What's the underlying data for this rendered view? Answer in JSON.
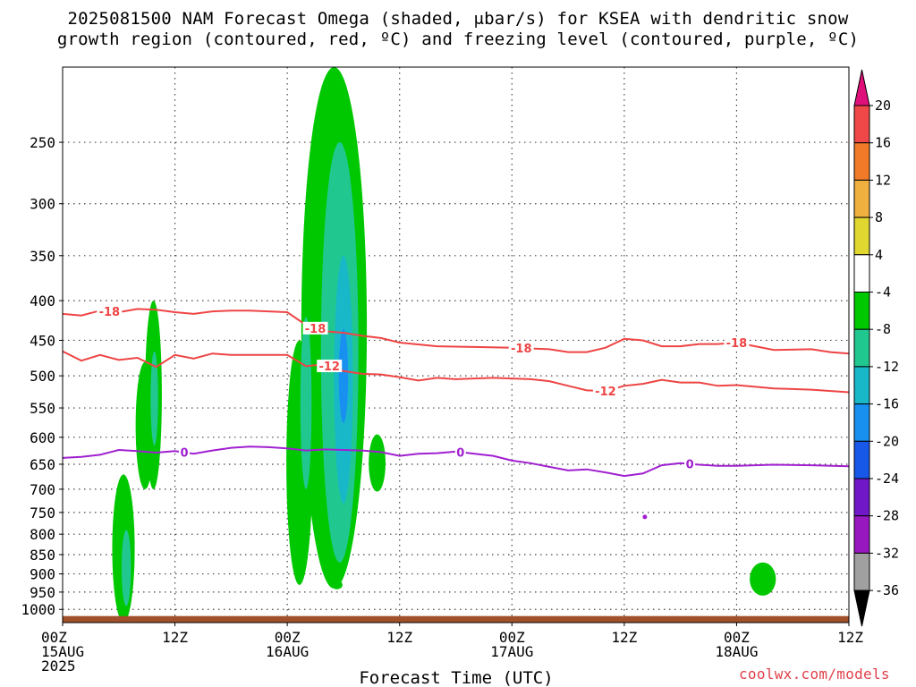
{
  "title": {
    "line1": "2025081500 NAM Forecast Omega (shaded, μbar/s) for KSEA with dendritic snow",
    "line2": "growth region (contoured, red, ºC) and freezing level (contoured, purple, ºC)"
  },
  "credit": "coolwx.com/models",
  "chart_data": {
    "type": "heatmap",
    "xlabel": "Forecast Time (UTC)",
    "ylabel": "",
    "x_range_hours": [
      0,
      84
    ],
    "y_axis": {
      "scale": "log-pressure",
      "range_hPa": [
        1040,
        200
      ],
      "ticks": [
        250,
        300,
        350,
        400,
        450,
        500,
        550,
        600,
        650,
        700,
        750,
        800,
        850,
        900,
        950,
        1000
      ]
    },
    "x_ticks": [
      {
        "hour": 0,
        "l1": "00Z",
        "l2": "15AUG",
        "l3": "2025"
      },
      {
        "hour": 12,
        "l1": "12Z",
        "l2": "",
        "l3": ""
      },
      {
        "hour": 24,
        "l1": "00Z",
        "l2": "16AUG",
        "l3": ""
      },
      {
        "hour": 36,
        "l1": "12Z",
        "l2": "",
        "l3": ""
      },
      {
        "hour": 48,
        "l1": "00Z",
        "l2": "17AUG",
        "l3": ""
      },
      {
        "hour": 60,
        "l1": "12Z",
        "l2": "",
        "l3": ""
      },
      {
        "hour": 72,
        "l1": "00Z",
        "l2": "18AUG",
        "l3": ""
      },
      {
        "hour": 84,
        "l1": "12Z",
        "l2": "",
        "l3": ""
      }
    ],
    "grid": true,
    "colorbar": {
      "labels": [
        "20",
        "16",
        "12",
        "8",
        "4",
        "-4",
        "-8",
        "-12",
        "-16",
        "-20",
        "-24",
        "-28",
        "-32",
        "-36"
      ],
      "colors": [
        "#e0107a",
        "#f04848",
        "#f07a28",
        "#f0b040",
        "#e0d830",
        "#ffffff",
        "#00c800",
        "#20c890",
        "#18b8c8",
        "#1890f0",
        "#1858e8",
        "#7018c8",
        "#9818c0",
        "#a0a0a0",
        "#000000"
      ]
    },
    "omega_regions": [
      {
        "name": "-4 to -8",
        "color": "#00c800",
        "blobs": [
          {
            "x": 6.5,
            "p": 860,
            "dx": 1.2,
            "dp": 190
          },
          {
            "x": 8.8,
            "p": 590,
            "dx": 1.0,
            "dp": 110
          },
          {
            "x": 9.7,
            "p": 550,
            "dx": 0.9,
            "dp": 150
          },
          {
            "x": 25.3,
            "p": 690,
            "dx": 1.4,
            "dp": 240
          },
          {
            "x": 29.0,
            "p": 520,
            "dx": 3.5,
            "dp": 420
          },
          {
            "x": 33.6,
            "p": 650,
            "dx": 0.9,
            "dp": 55
          },
          {
            "x": 29.3,
            "p": 930,
            "dx": 0.6,
            "dp": 12
          },
          {
            "x": 74.8,
            "p": 915,
            "dx": 1.4,
            "dp": 45
          }
        ]
      },
      {
        "name": "-8 to -12",
        "color": "#20c890",
        "blobs": [
          {
            "x": 6.8,
            "p": 890,
            "dx": 0.5,
            "dp": 100
          },
          {
            "x": 9.8,
            "p": 540,
            "dx": 0.4,
            "dp": 75
          },
          {
            "x": 26.0,
            "p": 560,
            "dx": 0.6,
            "dp": 140
          },
          {
            "x": 29.6,
            "p": 560,
            "dx": 2.0,
            "dp": 310
          }
        ]
      },
      {
        "name": "-12 to -16",
        "color": "#18b8c8",
        "blobs": [
          {
            "x": 30.0,
            "p": 540,
            "dx": 1.0,
            "dp": 190
          }
        ]
      },
      {
        "name": "-16 to -20",
        "color": "#1890f0",
        "blobs": [
          {
            "x": 30.0,
            "p": 505,
            "dx": 0.5,
            "dp": 70
          }
        ]
      }
    ],
    "contours": [
      {
        "name": "-18",
        "color": "#ee4444",
        "label": "-18",
        "label_x": [
          5.0,
          27.0,
          49.0,
          72.0
        ],
        "points": [
          [
            0,
            416
          ],
          [
            2,
            418
          ],
          [
            4,
            412
          ],
          [
            6,
            414
          ],
          [
            8,
            410
          ],
          [
            10,
            411
          ],
          [
            12,
            414
          ],
          [
            14,
            416
          ],
          [
            16,
            413
          ],
          [
            18,
            412
          ],
          [
            20,
            412
          ],
          [
            22,
            413
          ],
          [
            24,
            414
          ],
          [
            26,
            430
          ],
          [
            28,
            438
          ],
          [
            30,
            440
          ],
          [
            32,
            444
          ],
          [
            34,
            447
          ],
          [
            36,
            453
          ],
          [
            40,
            458
          ],
          [
            44,
            459
          ],
          [
            48,
            460
          ],
          [
            52,
            462
          ],
          [
            54,
            466
          ],
          [
            56,
            466
          ],
          [
            58,
            460
          ],
          [
            60,
            448
          ],
          [
            62,
            450
          ],
          [
            64,
            458
          ],
          [
            66,
            458
          ],
          [
            68,
            455
          ],
          [
            70,
            455
          ],
          [
            72,
            453
          ],
          [
            76,
            463
          ],
          [
            80,
            462
          ],
          [
            82,
            466
          ],
          [
            84,
            468
          ]
        ]
      },
      {
        "name": "-12",
        "color": "#ee4444",
        "label": "-12",
        "label_x": [
          28.5,
          58.0
        ],
        "points": [
          [
            0,
            465
          ],
          [
            2,
            478
          ],
          [
            4,
            470
          ],
          [
            6,
            477
          ],
          [
            8,
            474
          ],
          [
            10,
            487
          ],
          [
            12,
            470
          ],
          [
            14,
            475
          ],
          [
            16,
            468
          ],
          [
            18,
            470
          ],
          [
            20,
            470
          ],
          [
            22,
            470
          ],
          [
            24,
            470
          ],
          [
            26,
            486
          ],
          [
            28,
            483
          ],
          [
            30,
            493
          ],
          [
            32,
            497
          ],
          [
            34,
            498
          ],
          [
            36,
            502
          ],
          [
            38,
            507
          ],
          [
            40,
            503
          ],
          [
            42,
            505
          ],
          [
            46,
            503
          ],
          [
            50,
            505
          ],
          [
            52,
            508
          ],
          [
            54,
            515
          ],
          [
            56,
            522
          ],
          [
            58,
            523
          ],
          [
            60,
            515
          ],
          [
            62,
            512
          ],
          [
            64,
            506
          ],
          [
            66,
            510
          ],
          [
            68,
            510
          ],
          [
            70,
            515
          ],
          [
            72,
            514
          ],
          [
            76,
            519
          ],
          [
            80,
            521
          ],
          [
            84,
            525
          ]
        ]
      },
      {
        "name": "0",
        "color": "#a020d0",
        "label": "0",
        "label_x": [
          13.0,
          42.5,
          67.0
        ],
        "points": [
          [
            0,
            638
          ],
          [
            2,
            636
          ],
          [
            4,
            632
          ],
          [
            6,
            623
          ],
          [
            8,
            625
          ],
          [
            10,
            628
          ],
          [
            12,
            625
          ],
          [
            14,
            630
          ],
          [
            16,
            624
          ],
          [
            18,
            619
          ],
          [
            20,
            617
          ],
          [
            22,
            618
          ],
          [
            24,
            620
          ],
          [
            26,
            624
          ],
          [
            28,
            622
          ],
          [
            30,
            623
          ],
          [
            32,
            624
          ],
          [
            34,
            627
          ],
          [
            36,
            634
          ],
          [
            38,
            630
          ],
          [
            40,
            629
          ],
          [
            42,
            626
          ],
          [
            44,
            630
          ],
          [
            46,
            634
          ],
          [
            48,
            643
          ],
          [
            50,
            648
          ],
          [
            52,
            655
          ],
          [
            54,
            662
          ],
          [
            56,
            660
          ],
          [
            58,
            666
          ],
          [
            60,
            673
          ],
          [
            62,
            668
          ],
          [
            64,
            652
          ],
          [
            66,
            648
          ],
          [
            68,
            651
          ],
          [
            70,
            653
          ],
          [
            72,
            653
          ],
          [
            76,
            651
          ],
          [
            80,
            652
          ],
          [
            84,
            654
          ]
        ]
      }
    ],
    "isolated_points": [
      {
        "hour": 62.2,
        "p": 760,
        "color": "#a020d0"
      }
    ],
    "terrain": {
      "color": "#a0502a",
      "p_top": 1020
    }
  }
}
